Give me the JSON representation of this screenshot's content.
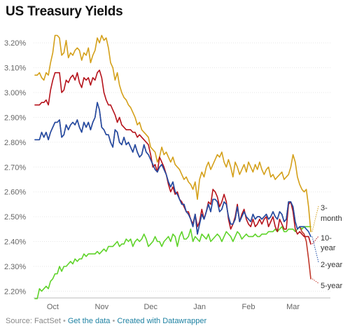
{
  "title": "US Treasury Yields",
  "footer": {
    "source": "Source: FactSet",
    "separator": "•",
    "get_data": "Get the data",
    "created_with": "Created with Datawrapper"
  },
  "chart_data": {
    "type": "line",
    "title": "US Treasury Yields",
    "ylim": [
      2.17,
      3.24
    ],
    "y_ticks": [
      "3.20%",
      "3.10%",
      "3.00%",
      "2.90%",
      "2.80%",
      "2.70%",
      "2.60%",
      "2.50%",
      "2.40%",
      "2.30%",
      "2.20%"
    ],
    "y_tick_values": [
      3.2,
      3.1,
      3.0,
      2.9,
      2.8,
      2.7,
      2.6,
      2.5,
      2.4,
      2.3,
      2.2
    ],
    "grid": "horizontal",
    "x_ticks": [
      {
        "label": "Oct",
        "index": 8
      },
      {
        "label": "Nov",
        "index": 30
      },
      {
        "label": "Dec",
        "index": 52
      },
      {
        "label": "Jan",
        "index": 74
      },
      {
        "label": "Feb",
        "index": 96
      },
      {
        "label": "Mar",
        "index": 116
      }
    ],
    "series": [
      {
        "name": "3-month",
        "label_lines": [
          "3-",
          "month"
        ],
        "color": "#d4a01a",
        "values": [
          3.07,
          3.07,
          3.08,
          3.06,
          3.05,
          3.08,
          3.07,
          3.12,
          3.16,
          3.23,
          3.23,
          3.22,
          3.15,
          3.16,
          3.21,
          3.14,
          3.16,
          3.15,
          3.17,
          3.18,
          3.17,
          3.13,
          3.16,
          3.15,
          3.18,
          3.12,
          3.15,
          3.17,
          3.22,
          3.2,
          3.23,
          3.21,
          3.22,
          3.18,
          3.12,
          3.1,
          3.05,
          3.08,
          3.03,
          3.0,
          2.98,
          2.97,
          2.95,
          2.94,
          2.92,
          2.9,
          2.87,
          2.88,
          2.85,
          2.84,
          2.83,
          2.82,
          2.78,
          2.77,
          2.76,
          2.72,
          2.74,
          2.78,
          2.75,
          2.76,
          2.74,
          2.72,
          2.74,
          2.71,
          2.7,
          2.69,
          2.67,
          2.65,
          2.66,
          2.64,
          2.63,
          2.61,
          2.64,
          2.57,
          2.65,
          2.68,
          2.66,
          2.7,
          2.72,
          2.69,
          2.71,
          2.73,
          2.75,
          2.74,
          2.76,
          2.72,
          2.7,
          2.73,
          2.7,
          2.66,
          2.72,
          2.7,
          2.67,
          2.69,
          2.71,
          2.68,
          2.72,
          2.7,
          2.68,
          2.71,
          2.69,
          2.72,
          2.69,
          2.67,
          2.69,
          2.7,
          2.66,
          2.67,
          2.65,
          2.66,
          2.67,
          2.68,
          2.65,
          2.66,
          2.67,
          2.7,
          2.75,
          2.72,
          2.66,
          2.63,
          2.61,
          2.6,
          2.61,
          2.54,
          2.44
        ]
      },
      {
        "name": "10-year",
        "label_lines": [
          "10-",
          "year"
        ],
        "color": "#b5121b",
        "values": [
          2.95,
          2.95,
          2.95,
          2.96,
          2.96,
          2.97,
          2.95,
          3.01,
          3.05,
          3.08,
          3.08,
          3.08,
          3.0,
          3.01,
          3.05,
          3.04,
          3.06,
          3.07,
          3.05,
          3.08,
          3.04,
          3.02,
          3.06,
          3.05,
          3.06,
          3.03,
          3.06,
          3.05,
          3.08,
          3.09,
          3.06,
          3.0,
          2.97,
          2.95,
          2.95,
          2.93,
          2.91,
          2.88,
          2.9,
          2.87,
          2.86,
          2.85,
          2.85,
          2.85,
          2.84,
          2.84,
          2.82,
          2.83,
          2.82,
          2.81,
          2.8,
          2.79,
          2.75,
          2.7,
          2.71,
          2.68,
          2.74,
          2.72,
          2.7,
          2.67,
          2.63,
          2.6,
          2.62,
          2.59,
          2.6,
          2.57,
          2.56,
          2.54,
          2.52,
          2.52,
          2.49,
          2.47,
          2.51,
          2.46,
          2.48,
          2.53,
          2.49,
          2.52,
          2.56,
          2.55,
          2.61,
          2.6,
          2.58,
          2.54,
          2.56,
          2.59,
          2.56,
          2.49,
          2.45,
          2.47,
          2.5,
          2.55,
          2.48,
          2.51,
          2.53,
          2.49,
          2.47,
          2.46,
          2.49,
          2.46,
          2.47,
          2.49,
          2.47,
          2.49,
          2.5,
          2.46,
          2.48,
          2.5,
          2.46,
          2.44,
          2.49,
          2.47,
          2.45,
          2.45,
          2.55,
          2.56,
          2.52,
          2.45,
          2.43,
          2.44,
          2.43,
          2.42,
          2.42,
          2.42,
          2.39
        ]
      },
      {
        "name": "2-year",
        "label_lines": [
          "2-year"
        ],
        "color": "#1f4ea8",
        "values": [
          2.81,
          2.81,
          2.81,
          2.84,
          2.82,
          2.84,
          2.81,
          2.84,
          2.86,
          2.88,
          2.88,
          2.89,
          2.82,
          2.83,
          2.87,
          2.85,
          2.87,
          2.88,
          2.87,
          2.89,
          2.86,
          2.84,
          2.88,
          2.86,
          2.88,
          2.85,
          2.88,
          2.9,
          2.96,
          2.93,
          2.86,
          2.85,
          2.83,
          2.83,
          2.8,
          2.78,
          2.85,
          2.84,
          2.8,
          2.79,
          2.82,
          2.79,
          2.8,
          2.78,
          2.76,
          2.79,
          2.76,
          2.74,
          2.75,
          2.79,
          2.76,
          2.75,
          2.73,
          2.71,
          2.69,
          2.68,
          2.7,
          2.71,
          2.69,
          2.67,
          2.64,
          2.62,
          2.64,
          2.6,
          2.59,
          2.57,
          2.55,
          2.55,
          2.52,
          2.51,
          2.49,
          2.46,
          2.51,
          2.43,
          2.47,
          2.51,
          2.49,
          2.52,
          2.55,
          2.52,
          2.57,
          2.57,
          2.56,
          2.52,
          2.53,
          2.56,
          2.55,
          2.5,
          2.47,
          2.47,
          2.49,
          2.54,
          2.48,
          2.5,
          2.52,
          2.5,
          2.49,
          2.48,
          2.51,
          2.49,
          2.5,
          2.5,
          2.49,
          2.5,
          2.51,
          2.49,
          2.5,
          2.52,
          2.5,
          2.49,
          2.52,
          2.51,
          2.48,
          2.49,
          2.56,
          2.56,
          2.54,
          2.48,
          2.45,
          2.46,
          2.46,
          2.46,
          2.45,
          2.44,
          2.42
        ]
      },
      {
        "name": "5-year",
        "label_lines": [
          "5-year"
        ],
        "color": "#c0392b",
        "values": [
          2.81,
          2.81,
          2.81,
          2.84,
          2.82,
          2.84,
          2.81,
          2.84,
          2.86,
          2.88,
          2.88,
          2.89,
          2.82,
          2.83,
          2.87,
          2.85,
          2.87,
          2.88,
          2.87,
          2.89,
          2.86,
          2.84,
          2.88,
          2.86,
          2.88,
          2.85,
          2.88,
          2.9,
          2.96,
          2.93,
          2.86,
          2.85,
          2.83,
          2.83,
          2.8,
          2.78,
          2.85,
          2.84,
          2.8,
          2.79,
          2.82,
          2.79,
          2.8,
          2.78,
          2.76,
          2.79,
          2.76,
          2.74,
          2.75,
          2.79,
          2.76,
          2.75,
          2.73,
          2.71,
          2.69,
          2.68,
          2.7,
          2.71,
          2.69,
          2.67,
          2.64,
          2.62,
          2.64,
          2.6,
          2.59,
          2.57,
          2.55,
          2.55,
          2.52,
          2.51,
          2.49,
          2.46,
          2.51,
          2.43,
          2.47,
          2.51,
          2.49,
          2.52,
          2.55,
          2.52,
          2.57,
          2.57,
          2.56,
          2.52,
          2.53,
          2.56,
          2.55,
          2.5,
          2.47,
          2.47,
          2.49,
          2.54,
          2.48,
          2.5,
          2.52,
          2.5,
          2.49,
          2.48,
          2.51,
          2.49,
          2.5,
          2.5,
          2.49,
          2.5,
          2.51,
          2.49,
          2.5,
          2.52,
          2.5,
          2.49,
          2.52,
          2.51,
          2.48,
          2.49,
          2.56,
          2.56,
          2.54,
          2.48,
          2.45,
          2.46,
          2.44,
          2.43,
          2.4,
          2.33,
          2.25
        ]
      },
      {
        "name": "green series",
        "label_lines": [],
        "color": "#5fd32a",
        "values": [
          2.17,
          2.17,
          2.21,
          2.2,
          2.21,
          2.22,
          2.21,
          2.24,
          2.25,
          2.27,
          2.27,
          2.3,
          2.28,
          2.3,
          2.3,
          2.31,
          2.32,
          2.31,
          2.33,
          2.32,
          2.33,
          2.33,
          2.35,
          2.34,
          2.35,
          2.35,
          2.35,
          2.35,
          2.36,
          2.35,
          2.36,
          2.37,
          2.36,
          2.38,
          2.38,
          2.38,
          2.39,
          2.4,
          2.38,
          2.39,
          2.39,
          2.41,
          2.4,
          2.41,
          2.38,
          2.4,
          2.41,
          2.4,
          2.41,
          2.43,
          2.41,
          2.38,
          2.39,
          2.4,
          2.42,
          2.4,
          2.4,
          2.38,
          2.4,
          2.41,
          2.42,
          2.4,
          2.43,
          2.42,
          2.38,
          2.42,
          2.44,
          2.41,
          2.41,
          2.42,
          2.45,
          2.4,
          2.42,
          2.41,
          2.4,
          2.43,
          2.42,
          2.41,
          2.43,
          2.4,
          2.41,
          2.42,
          2.43,
          2.42,
          2.4,
          2.42,
          2.44,
          2.43,
          2.42,
          2.4,
          2.42,
          2.44,
          2.43,
          2.41,
          2.42,
          2.43,
          2.42,
          2.42,
          2.42,
          2.43,
          2.42,
          2.42,
          2.43,
          2.43,
          2.43,
          2.44,
          2.44,
          2.44,
          2.45,
          2.44,
          2.45,
          2.46,
          2.44,
          2.44,
          2.45,
          2.45,
          2.45,
          2.44,
          2.45,
          2.46,
          2.45,
          2.46,
          2.46,
          2.46,
          2.46
        ]
      }
    ]
  }
}
